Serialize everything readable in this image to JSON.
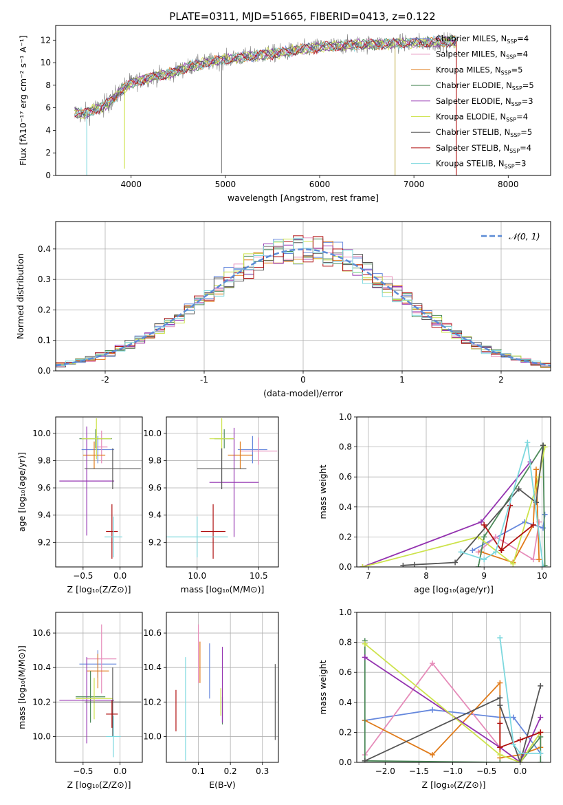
{
  "title": "PLATE=0311, MJD=51665, FIBERID=0413, z=0.122",
  "colors": {
    "chabrier_miles": "#6688dd",
    "salpeter_miles": "#e68bb9",
    "kroupa_miles": "#e07b1a",
    "chabrier_elodie": "#4d8a5a",
    "salpeter_elodie": "#9433b0",
    "kroupa_elodie": "#cde34c",
    "chabrier_stelib": "#555555",
    "salpeter_stelib": "#b01010",
    "kroupa_stelib": "#7dd8de",
    "data": "#7f7f7f",
    "gaussian": "#5b8bd6"
  },
  "chart_data": [
    {
      "id": "spectrum",
      "type": "line",
      "xlabel": "wavelength [Angstrom, rest frame]",
      "ylabel": "Flux [fλ10⁻¹⁷ erg cm⁻² s⁻¹ A⁻¹]",
      "xlim": [
        3200,
        8450
      ],
      "ylim": [
        0,
        13.3
      ],
      "xticks": [
        4000,
        5000,
        6000,
        7000,
        8000
      ],
      "yticks": [
        0,
        2,
        4,
        6,
        8,
        10,
        12
      ],
      "grid": false,
      "legend": "upper-right",
      "legend_entries": [
        {
          "label": "Chabrier MILES, N_SSP=4",
          "main": "Chabrier MILES, N",
          "sub": "SSP",
          "tail": "=4",
          "color": "#6688dd"
        },
        {
          "label": "Salpeter MILES, N_SSP=4",
          "main": "Salpeter MILES, N",
          "sub": "SSP",
          "tail": "=4",
          "color": "#e68bb9"
        },
        {
          "label": "Kroupa MILES, N_SSP=5",
          "main": "Kroupa MILES, N",
          "sub": "SSP",
          "tail": "=5",
          "color": "#e07b1a"
        },
        {
          "label": "Chabrier ELODIE, N_SSP=5",
          "main": "Chabrier ELODIE, N",
          "sub": "SSP",
          "tail": "=5",
          "color": "#4d8a5a"
        },
        {
          "label": "Salpeter ELODIE, N_SSP=3",
          "main": "Salpeter ELODIE, N",
          "sub": "SSP",
          "tail": "=3",
          "color": "#9433b0"
        },
        {
          "label": "Kroupa ELODIE, N_SSP=4",
          "main": "Kroupa ELODIE, N",
          "sub": "SSP",
          "tail": "=4",
          "color": "#cde34c"
        },
        {
          "label": "Chabrier STELIB, N_SSP=5",
          "main": "Chabrier STELIB, N",
          "sub": "SSP",
          "tail": "=5",
          "color": "#555555"
        },
        {
          "label": "Salpeter STELIB, N_SSP=4",
          "main": "Salpeter STELIB, N",
          "sub": "SSP",
          "tail": "=4",
          "color": "#b01010"
        },
        {
          "label": "Kroupa STELIB, N_SSP=3",
          "main": "Kroupa STELIB, N",
          "sub": "SSP",
          "tail": "=3",
          "color": "#7dd8de"
        }
      ],
      "continuum": {
        "x": [
          3400,
          3500,
          3600,
          3700,
          3800,
          3900,
          4000,
          4200,
          4400,
          4600,
          4800,
          5000,
          5300,
          5600,
          6000,
          6400,
          6800,
          7200,
          7450
        ],
        "y": [
          5.6,
          5.4,
          5.8,
          6.1,
          6.7,
          7.6,
          8.2,
          8.7,
          9.0,
          9.6,
          10.0,
          10.3,
          10.6,
          10.9,
          11.4,
          11.6,
          11.7,
          11.8,
          11.9
        ]
      },
      "spikes_down": [
        [
          3530,
          0
        ],
        [
          3930,
          0.6
        ],
        [
          4960,
          0.2
        ],
        [
          6800,
          0
        ],
        [
          7450,
          0
        ]
      ],
      "spike_colors": [
        "#7dd8de",
        "#cde34c",
        "#7f7f7f",
        "#c7b75a",
        "#b01010"
      ]
    },
    {
      "id": "residuals",
      "type": "step",
      "xlabel": "(data-model)/error",
      "ylabel": "Normed distribution",
      "xlim": [
        -2.5,
        2.5
      ],
      "ylim": [
        0,
        0.49
      ],
      "xticks": [
        -2,
        -1,
        0,
        1,
        2
      ],
      "yticks": [
        0.0,
        0.1,
        0.2,
        0.3,
        0.4
      ],
      "grid": true,
      "legend": "upper-right",
      "gaussian_label": "𝒩(0, 1)",
      "bin_width": 0.1
    },
    {
      "id": "age_vs_z",
      "type": "errorbar",
      "xlabel": "Z [log₁₀(Z/Z⊙)]",
      "ylabel": "age  [log₁₀(age/yr)]",
      "xlim": [
        -0.87,
        0.3
      ],
      "ylim": [
        9.02,
        10.12
      ],
      "xticks": [
        -0.5,
        0.0
      ],
      "xticklabels": [
        "−0.5",
        "0.0"
      ],
      "yticks": [
        9.2,
        9.4,
        9.6,
        9.8,
        10.0
      ],
      "grid": true,
      "points": [
        {
          "x": -0.3,
          "xerr": 0.22,
          "y": 9.88,
          "yerr": 0.1,
          "color": "#6688dd"
        },
        {
          "x": -0.25,
          "xerr": 0.08,
          "y": 9.9,
          "yerr": 0.12,
          "color": "#e68bb9"
        },
        {
          "x": -0.35,
          "xerr": 0.15,
          "y": 9.84,
          "yerr": 0.1,
          "color": "#e07b1a"
        },
        {
          "x": -0.33,
          "xerr": 0.22,
          "y": 9.96,
          "yerr": 0.07,
          "color": "#4d8a5a"
        },
        {
          "x": -0.45,
          "xerr": 0.37,
          "y": 9.65,
          "yerr": 0.4,
          "color": "#9433b0"
        },
        {
          "x": -0.32,
          "xerr": 0.2,
          "y": 9.96,
          "yerr": 0.15,
          "color": "#cde34c"
        },
        {
          "x": -0.1,
          "xerr": 0.38,
          "y": 9.74,
          "yerr": 0.15,
          "color": "#555555"
        },
        {
          "x": -0.11,
          "xerr": 0.08,
          "y": 9.28,
          "yerr": 0.2,
          "color": "#b01010"
        },
        {
          "x": -0.09,
          "xerr": 0.12,
          "y": 9.24,
          "yerr": 0.15,
          "color": "#7dd8de"
        }
      ]
    },
    {
      "id": "age_vs_mass",
      "type": "errorbar",
      "xlabel": "mass [log₁₀(M/M⊙)]",
      "ylabel": "",
      "xlim": [
        9.75,
        10.66
      ],
      "ylim": [
        9.02,
        10.12
      ],
      "xticks": [
        10.0,
        10.5
      ],
      "xticklabels": [
        "10.0",
        "10.5"
      ],
      "yticks": [
        9.2,
        9.4,
        9.6,
        9.8,
        10.0
      ],
      "grid": true,
      "points": [
        {
          "x": 10.45,
          "xerr": 0.12,
          "y": 9.88,
          "yerr": 0.1,
          "color": "#6688dd"
        },
        {
          "x": 10.5,
          "xerr": 0.15,
          "y": 9.87,
          "yerr": 0.1,
          "color": "#e68bb9"
        },
        {
          "x": 10.35,
          "xerr": 0.1,
          "y": 9.84,
          "yerr": 0.1,
          "color": "#e07b1a"
        },
        {
          "x": 10.22,
          "xerr": 0.08,
          "y": 9.96,
          "yerr": 0.07,
          "color": "#4d8a5a"
        },
        {
          "x": 10.3,
          "xerr": 0.2,
          "y": 9.64,
          "yerr": 0.4,
          "color": "#9433b0"
        },
        {
          "x": 10.2,
          "xerr": 0.1,
          "y": 9.96,
          "yerr": 0.15,
          "color": "#cde34c"
        },
        {
          "x": 10.2,
          "xerr": 0.2,
          "y": 9.74,
          "yerr": 0.15,
          "color": "#555555"
        },
        {
          "x": 10.13,
          "xerr": 0.1,
          "y": 9.28,
          "yerr": 0.2,
          "color": "#b01010"
        },
        {
          "x": 10.0,
          "xerr": 0.25,
          "y": 9.24,
          "yerr": 0.15,
          "color": "#7dd8de"
        }
      ]
    },
    {
      "id": "mass_weight_vs_age",
      "type": "line",
      "xlabel": "age  [log₁₀(age/yr)]",
      "ylabel": "mass weight",
      "xlim": [
        6.8,
        10.15
      ],
      "ylim": [
        0,
        1.0
      ],
      "xticks": [
        7,
        8,
        9,
        10
      ],
      "yticks": [
        0.0,
        0.2,
        0.4,
        0.6,
        0.8,
        1.0
      ],
      "grid": true,
      "series": [
        {
          "color": "#6688dd",
          "x": [
            8.8,
            9.7,
            10.02,
            10.05
          ],
          "y": [
            0.11,
            0.3,
            0.26,
            0.35
          ]
        },
        {
          "color": "#e68bb9",
          "x": [
            8.9,
            9.2,
            9.85,
            9.95
          ],
          "y": [
            0.1,
            0.2,
            0.05,
            0.3
          ]
        },
        {
          "color": "#e07b1a",
          "x": [
            8.95,
            9.5,
            9.85,
            9.9,
            9.95
          ],
          "y": [
            0.1,
            0.03,
            0.28,
            0.65,
            0.05
          ]
        },
        {
          "color": "#4d8a5a",
          "x": [
            8.9,
            9.0,
            10.02,
            10.05
          ],
          "y": [
            0.0,
            0.2,
            0.81,
            0.01
          ]
        },
        {
          "color": "#9433b0",
          "x": [
            6.9,
            8.95,
            9.8
          ],
          "y": [
            0.0,
            0.3,
            0.7
          ]
        },
        {
          "color": "#cde34c",
          "x": [
            6.9,
            8.9,
            9.5,
            9.95,
            10.05
          ],
          "y": [
            0.0,
            0.2,
            0.02,
            0.6,
            0.8
          ]
        },
        {
          "color": "#555555",
          "x": [
            7.6,
            7.8,
            8.5,
            9.6,
            9.9,
            10.02
          ],
          "y": [
            0.01,
            0.015,
            0.03,
            0.52,
            0.43,
            0.81
          ]
        },
        {
          "color": "#b01010",
          "x": [
            9.0,
            9.3,
            9.45,
            9.3,
            9.85
          ],
          "y": [
            0.28,
            0.11,
            0.41,
            0.11,
            0.28
          ]
        },
        {
          "color": "#7dd8de",
          "x": [
            8.6,
            9.0,
            9.2,
            9.75,
            10.02
          ],
          "y": [
            0.1,
            0.05,
            0.1,
            0.83,
            0.0
          ]
        }
      ]
    },
    {
      "id": "mass_vs_z",
      "type": "errorbar",
      "xlabel": "Z [log₁₀(Z/Z⊙)]",
      "ylabel": "mass [log₁₀(M/M⊙)]",
      "xlim": [
        -0.87,
        0.3
      ],
      "ylim": [
        9.85,
        10.72
      ],
      "xticks": [
        -0.5,
        0.0
      ],
      "xticklabels": [
        "−0.5",
        "0.0"
      ],
      "yticks": [
        10.0,
        10.2,
        10.4,
        10.6
      ],
      "grid": true,
      "points": [
        {
          "x": -0.3,
          "xerr": 0.25,
          "y": 10.42,
          "yerr": 0.08,
          "color": "#6688dd"
        },
        {
          "x": -0.25,
          "xerr": 0.2,
          "y": 10.45,
          "yerr": 0.2,
          "color": "#e68bb9"
        },
        {
          "x": -0.3,
          "xerr": 0.15,
          "y": 10.38,
          "yerr": 0.1,
          "color": "#e07b1a"
        },
        {
          "x": -0.4,
          "xerr": 0.2,
          "y": 10.23,
          "yerr": 0.15,
          "color": "#4d8a5a"
        },
        {
          "x": -0.45,
          "xerr": 0.37,
          "y": 10.21,
          "yerr": 0.25,
          "color": "#9433b0"
        },
        {
          "x": -0.35,
          "xerr": 0.25,
          "y": 10.22,
          "yerr": 0.12,
          "color": "#cde34c"
        },
        {
          "x": -0.1,
          "xerr": 0.38,
          "y": 10.2,
          "yerr": 0.2,
          "color": "#555555"
        },
        {
          "x": -0.11,
          "xerr": 0.08,
          "y": 10.13,
          "yerr": 0.08,
          "color": "#b01010"
        },
        {
          "x": -0.09,
          "xerr": 0.1,
          "y": 10.0,
          "yerr": 0.12,
          "color": "#7dd8de"
        }
      ]
    },
    {
      "id": "mass_vs_ebv",
      "type": "errorbar",
      "xlabel": "E(B-V)",
      "ylabel": "",
      "xlim": [
        0.0,
        0.35
      ],
      "ylim": [
        9.85,
        10.72
      ],
      "xticks": [
        0.1,
        0.2,
        0.3
      ],
      "xticklabels": [
        "0.1",
        "0.2",
        "0.3"
      ],
      "yticks": [
        10.0,
        10.2,
        10.4,
        10.6
      ],
      "grid": true,
      "points": [
        {
          "x": 0.135,
          "y": 10.38,
          "yerr": 0.16,
          "color": "#6688dd"
        },
        {
          "x": 0.1,
          "y": 10.48,
          "yerr": 0.17,
          "color": "#e68bb9"
        },
        {
          "x": 0.105,
          "y": 10.43,
          "yerr": 0.12,
          "color": "#e07b1a"
        },
        {
          "x": 0.175,
          "y": 10.15,
          "yerr": 0.08,
          "color": "#4d8a5a"
        },
        {
          "x": 0.175,
          "y": 10.3,
          "yerr": 0.22,
          "color": "#9433b0"
        },
        {
          "x": 0.17,
          "y": 10.2,
          "yerr": 0.08,
          "color": "#cde34c"
        },
        {
          "x": 0.34,
          "y": 10.2,
          "yerr": 0.22,
          "color": "#555555"
        },
        {
          "x": 0.03,
          "y": 10.15,
          "yerr": 0.12,
          "color": "#b01010"
        },
        {
          "x": 0.06,
          "y": 10.16,
          "yerr": 0.3,
          "color": "#7dd8de"
        }
      ]
    },
    {
      "id": "mass_weight_vs_z",
      "type": "line",
      "xlabel": "Z [log₁₀(Z/Z⊙)]",
      "ylabel": "mass weight",
      "xlim": [
        -2.42,
        0.45
      ],
      "ylim": [
        0,
        1.0
      ],
      "xticks": [
        -2.0,
        -1.5,
        -1.0,
        -0.5,
        0.0
      ],
      "xticklabels": [
        "−2.0",
        "−1.5",
        "−1.0",
        "−0.5",
        "0.0"
      ],
      "yticks": [
        0.0,
        0.2,
        0.4,
        0.6,
        0.8,
        1.0
      ],
      "grid": true,
      "series": [
        {
          "color": "#6688dd",
          "x": [
            -2.3,
            -1.3,
            -0.3,
            -0.1,
            0.3
          ],
          "y": [
            0.28,
            0.35,
            0.3,
            0.3,
            0.06
          ]
        },
        {
          "color": "#e68bb9",
          "x": [
            -2.3,
            -1.3,
            -0.3,
            0.0,
            0.3
          ],
          "y": [
            0.05,
            0.66,
            0.1,
            0.0,
            0.2
          ]
        },
        {
          "color": "#e07b1a",
          "x": [
            -2.3,
            -1.3,
            -0.3,
            -0.3,
            0.0,
            0.3,
            0.3
          ],
          "y": [
            0.28,
            0.05,
            0.53,
            0.03,
            0.05,
            0.1,
            0.2
          ]
        },
        {
          "color": "#4d8a5a",
          "x": [
            -2.3,
            -2.3,
            -0.3,
            0.0,
            0.3,
            0.3
          ],
          "y": [
            0.81,
            0.01,
            0.0,
            0.0,
            0.17,
            0.0
          ]
        },
        {
          "color": "#9433b0",
          "x": [
            -2.3,
            -0.3,
            0.0,
            0.3
          ],
          "y": [
            0.7,
            0.1,
            0.0,
            0.3
          ]
        },
        {
          "color": "#cde34c",
          "x": [
            -2.3,
            -0.3,
            0.0,
            0.3
          ],
          "y": [
            0.79,
            0.05,
            0.0,
            0.2
          ]
        },
        {
          "color": "#555555",
          "x": [
            -2.3,
            -0.3,
            -0.3,
            0.0,
            0.3
          ],
          "y": [
            0.01,
            0.43,
            0.38,
            0.0,
            0.51
          ]
        },
        {
          "color": "#b01010",
          "x": [
            -0.3,
            -0.3,
            0.0,
            0.3
          ],
          "y": [
            0.26,
            0.1,
            0.15,
            0.2
          ]
        },
        {
          "color": "#7dd8de",
          "x": [
            -0.3,
            -0.1,
            0.0,
            0.3
          ],
          "y": [
            0.83,
            0.12,
            0.06,
            0.06
          ]
        }
      ]
    }
  ]
}
